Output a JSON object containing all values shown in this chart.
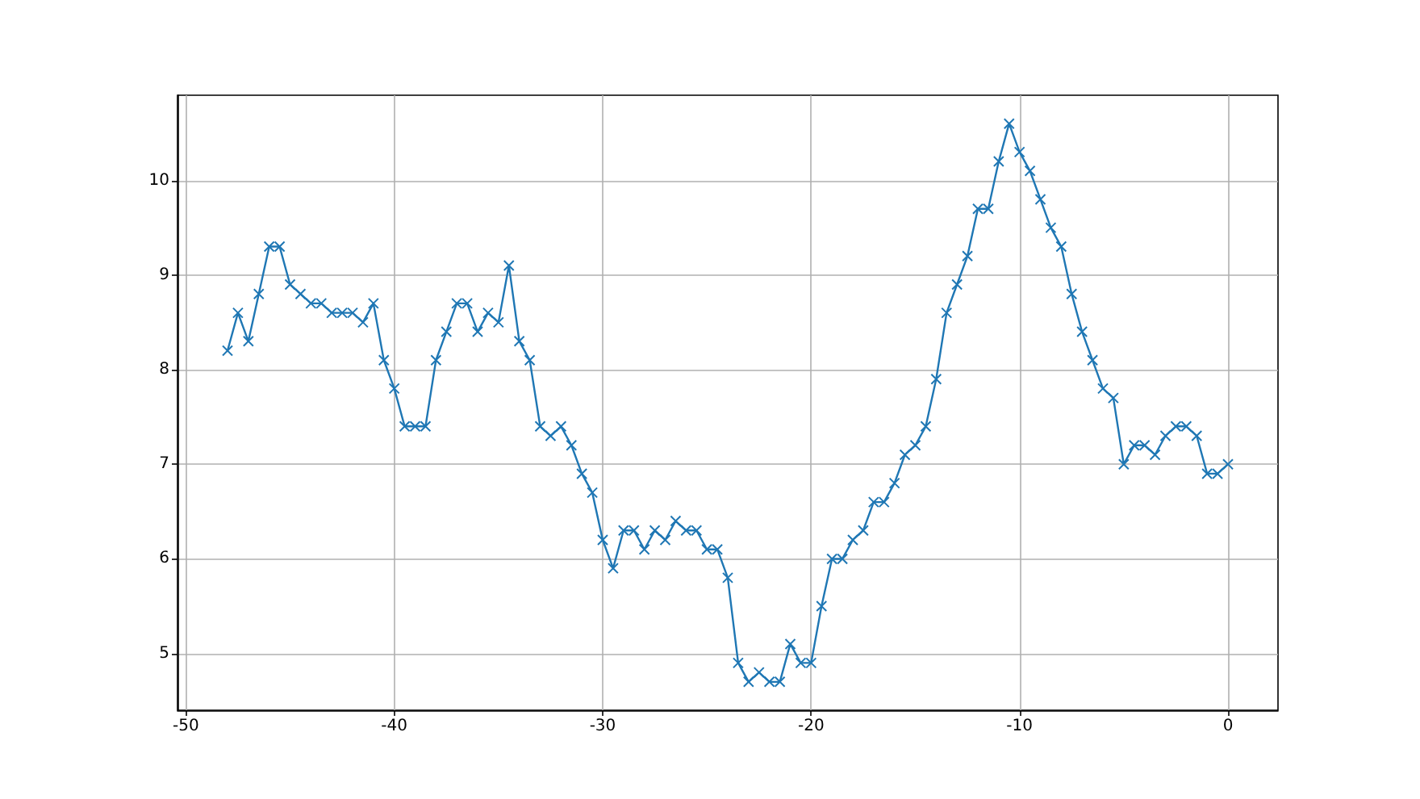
{
  "chart_data": {
    "type": "line",
    "color": "#1f77b4",
    "marker": "cross",
    "line_style": "solid",
    "grid": true,
    "xlim": [
      -50.4,
      2.4
    ],
    "ylim": [
      4.4,
      10.9
    ],
    "xticks": [
      -50,
      -40,
      -30,
      -20,
      -10,
      0
    ],
    "yticks": [
      5,
      6,
      7,
      8,
      9,
      10
    ],
    "x": [
      -48,
      -47.5,
      -47,
      -46.5,
      -46,
      -45.5,
      -45,
      -44.5,
      -44,
      -43.5,
      -43,
      -42.5,
      -42,
      -41.5,
      -41,
      -40.5,
      -40,
      -39.5,
      -39,
      -38.5,
      -38,
      -37.5,
      -37,
      -36.5,
      -36,
      -35.5,
      -35,
      -34.5,
      -34,
      -33.5,
      -33,
      -32.5,
      -32,
      -31.5,
      -31,
      -30.5,
      -30,
      -29.5,
      -29,
      -28.5,
      -28,
      -27.5,
      -27,
      -26.5,
      -26,
      -25.5,
      -25,
      -24.5,
      -24,
      -23.5,
      -23,
      -22.5,
      -22,
      -21.5,
      -21,
      -20.5,
      -20,
      -19.5,
      -19,
      -18.5,
      -18,
      -17.5,
      -17,
      -16.5,
      -16,
      -15.5,
      -15,
      -14.5,
      -14,
      -13.5,
      -13,
      -12.5,
      -12,
      -11.5,
      -11,
      -10.5,
      -10,
      -9.5,
      -9,
      -8.5,
      -8,
      -7.5,
      -7,
      -6.5,
      -6,
      -5.5,
      -5,
      -4.5,
      -4,
      -3.5,
      -3,
      -2.5,
      -2,
      -1.5,
      -1,
      -0.5,
      0
    ],
    "values": [
      8.2,
      8.6,
      8.3,
      8.8,
      9.3,
      9.3,
      8.9,
      8.8,
      8.7,
      8.7,
      8.6,
      8.6,
      8.6,
      8.5,
      8.7,
      8.1,
      7.8,
      7.4,
      7.4,
      7.4,
      8.1,
      8.4,
      8.7,
      8.7,
      8.4,
      8.6,
      8.5,
      9.1,
      8.3,
      8.1,
      7.4,
      7.3,
      7.4,
      7.2,
      6.9,
      6.7,
      6.2,
      5.9,
      6.3,
      6.3,
      6.1,
      6.3,
      6.2,
      6.4,
      6.3,
      6.3,
      6.1,
      6.1,
      5.8,
      4.9,
      4.7,
      4.8,
      4.7,
      4.7,
      5.1,
      4.9,
      4.9,
      5.5,
      6.0,
      6.0,
      6.2,
      6.3,
      6.6,
      6.6,
      6.8,
      7.1,
      7.2,
      7.4,
      7.9,
      8.6,
      8.9,
      9.2,
      9.7,
      9.7,
      10.2,
      10.6,
      10.3,
      10.1,
      9.8,
      9.5,
      9.3,
      8.8,
      8.4,
      8.1,
      7.8,
      7.7,
      7.0,
      7.2,
      7.2,
      7.1,
      7.3,
      7.4,
      7.4,
      7.3,
      6.9,
      6.9,
      7.0
    ]
  }
}
